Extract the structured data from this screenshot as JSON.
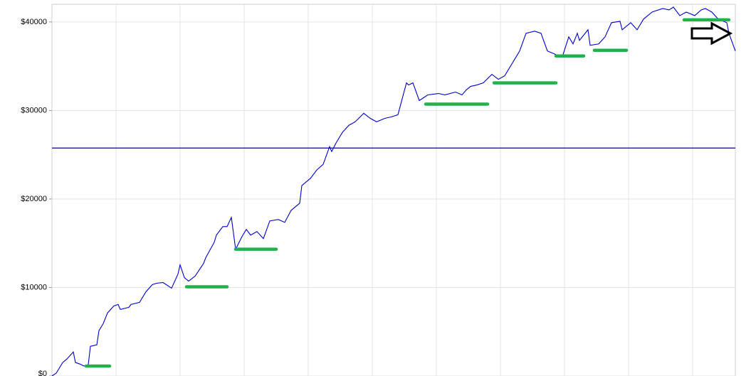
{
  "chart_data": {
    "type": "line",
    "x": [
      0,
      2,
      5,
      7,
      10,
      11,
      13,
      15,
      17,
      18,
      21,
      22,
      24,
      26,
      29,
      31,
      32,
      36,
      37,
      41,
      44,
      47,
      49,
      52,
      56,
      59,
      60,
      62,
      64,
      67,
      71,
      72,
      76,
      77,
      80,
      82,
      84,
      86,
      89,
      91,
      93,
      96,
      99,
      102,
      106,
      109,
      112,
      116,
      117,
      121,
      124,
      127,
      130,
      131,
      133,
      136,
      139,
      142,
      146,
      149,
      152,
      156,
      159,
      162,
      166,
      167,
      169,
      172,
      176,
      181,
      184,
      189,
      192,
      194,
      196,
      199,
      202,
      206,
      209,
      212,
      216,
      219,
      222,
      226,
      229,
      232,
      236,
      239,
      242,
      244,
      246,
      247,
      251,
      252,
      256,
      259,
      262,
      266,
      267,
      271,
      274,
      277,
      281,
      286,
      289,
      291,
      294,
      297,
      301,
      304,
      306,
      309,
      312,
      316,
      317,
      320
    ],
    "series": [
      {
        "color": "#0000cc",
        "values": [
          0,
          320,
          1520,
          1920,
          2720,
          1520,
          1360,
          1120,
          1280,
          3360,
          3520,
          5120,
          5920,
          7120,
          7920,
          8080,
          7520,
          7760,
          8080,
          8320,
          9520,
          10320,
          10480,
          10560,
          9920,
          11520,
          12560,
          11120,
          10720,
          11280,
          12720,
          13360,
          15120,
          15920,
          16880,
          16880,
          17920,
          14320,
          15760,
          16560,
          15920,
          16320,
          15520,
          17520,
          17680,
          17360,
          18720,
          19520,
          21520,
          22320,
          23280,
          23920,
          25920,
          25360,
          26320,
          27520,
          28320,
          28720,
          29680,
          29120,
          28720,
          29120,
          29280,
          29520,
          33120,
          32880,
          33120,
          31120,
          31760,
          31920,
          31760,
          32080,
          31760,
          32320,
          32720,
          32880,
          33120,
          34080,
          33520,
          33920,
          35520,
          36720,
          38720,
          38960,
          38720,
          36720,
          36320,
          36080,
          38320,
          37520,
          38720,
          37920,
          39120,
          37360,
          37520,
          38320,
          39920,
          40080,
          39120,
          39920,
          39120,
          40320,
          41120,
          41520,
          41360,
          41680,
          40720,
          41120,
          40720,
          41360,
          41520,
          41120,
          40320,
          39920,
          38720,
          36720
        ]
      }
    ],
    "hline": {
      "value": 25760,
      "color": "#00008b"
    },
    "segments": {
      "color": "#22b14c",
      "x_start": [
        16,
        63,
        86,
        175,
        207,
        236,
        254,
        296
      ],
      "x_end": [
        27,
        82,
        105,
        204,
        236,
        249,
        269,
        317
      ],
      "values": [
        1120,
        10080,
        14320,
        30720,
        33120,
        36160,
        36800,
        40240
      ]
    },
    "xlim": [
      0,
      320
    ],
    "xticks": [
      30,
      60,
      90,
      120,
      150,
      180,
      210,
      240,
      270,
      300
    ],
    "ylim": [
      0,
      42000
    ],
    "yticks": [
      {
        "value": 0,
        "label": "$0"
      },
      {
        "value": 10000,
        "label": "$10000"
      },
      {
        "value": 20000,
        "label": "$20000"
      },
      {
        "value": 30000,
        "label": "$30000"
      },
      {
        "value": 40000,
        "label": "$40000"
      }
    ],
    "grid": true
  }
}
